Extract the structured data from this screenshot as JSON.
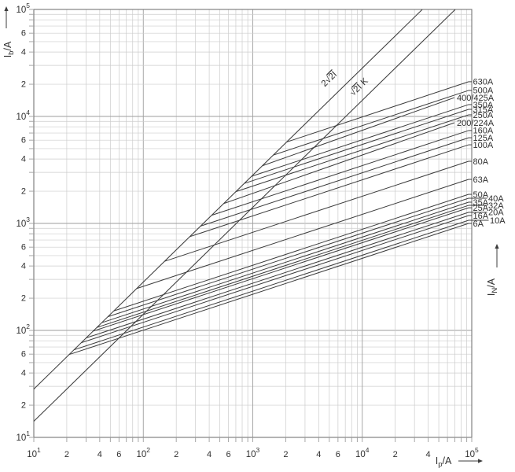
{
  "chart_data": {
    "type": "line",
    "scale": "log-log",
    "title": "",
    "xlabel": "Ip/A",
    "ylabel": "Ib/A",
    "right_label": "IN/A",
    "xlim": [
      10,
      100000
    ],
    "ylim": [
      10,
      100000
    ],
    "grid": true,
    "x_major_ticks": [
      "10^1",
      "10^2",
      "10^3",
      "10^4",
      "10^5"
    ],
    "y_major_ticks": [
      "10^1",
      "10^2",
      "10^3",
      "10^4",
      "10^5"
    ],
    "minor_tick_labels_per_decade": [
      2,
      4,
      6
    ],
    "x_last_decade_minor_labels": [
      2,
      4
    ],
    "reference_lines": [
      {
        "label": "2√2I",
        "factor": 2.8284,
        "slope_loglog": 1
      },
      {
        "label": "√2I K",
        "factor": 1.4142,
        "slope_loglog": 1
      }
    ],
    "curve_slope_loglog": 0.3333,
    "curve_branch_rule": "each curve branches off the 2√2I line",
    "curves": [
      {
        "rating": "630A",
        "cutoff_at_100kA_A": 21100,
        "label_col": 0
      },
      {
        "rating": "500A",
        "cutoff_at_100kA_A": 17500,
        "label_col": 0
      },
      {
        "rating": "400/425A",
        "cutoff_at_100kA_A": 15000,
        "label_col": -1
      },
      {
        "rating": "350A",
        "cutoff_at_100kA_A": 12900,
        "label_col": 0
      },
      {
        "rating": "315A",
        "cutoff_at_100kA_A": 11650,
        "label_col": 0
      },
      {
        "rating": "250A",
        "cutoff_at_100kA_A": 10350,
        "label_col": 0
      },
      {
        "rating": "200/224A",
        "cutoff_at_100kA_A": 8730,
        "label_col": -1
      },
      {
        "rating": "160A",
        "cutoff_at_100kA_A": 7380,
        "label_col": 0
      },
      {
        "rating": "125A",
        "cutoff_at_100kA_A": 6320,
        "label_col": 0
      },
      {
        "rating": "100A",
        "cutoff_at_100kA_A": 5430,
        "label_col": 0
      },
      {
        "rating": "80A",
        "cutoff_at_100kA_A": 3810,
        "label_col": 0
      },
      {
        "rating": "63A",
        "cutoff_at_100kA_A": 2580,
        "label_col": 0
      },
      {
        "rating": "50A",
        "cutoff_at_100kA_A": 1870,
        "label_col": 0
      },
      {
        "rating": "40A",
        "cutoff_at_100kA_A": 1720,
        "label_col": 1
      },
      {
        "rating": "35A",
        "cutoff_at_100kA_A": 1580,
        "label_col": 0
      },
      {
        "rating": "32A",
        "cutoff_at_100kA_A": 1475,
        "label_col": 1
      },
      {
        "rating": "25A",
        "cutoff_at_100kA_A": 1400,
        "label_col": 0
      },
      {
        "rating": "20A",
        "cutoff_at_100kA_A": 1270,
        "label_col": 1
      },
      {
        "rating": "16A",
        "cutoff_at_100kA_A": 1185,
        "label_col": 0
      },
      {
        "rating": "10A",
        "cutoff_at_100kA_A": 1070,
        "label_col": 1
      },
      {
        "rating": "6A",
        "cutoff_at_100kA_A": 1000,
        "label_col": 0
      }
    ],
    "colors": {
      "background": "#ffffff",
      "grid_minor": "#cccccc",
      "grid_major": "#9e9e9e",
      "border": "#767676",
      "curve": "#3c3c3c",
      "text": "#2f2f2f"
    }
  }
}
